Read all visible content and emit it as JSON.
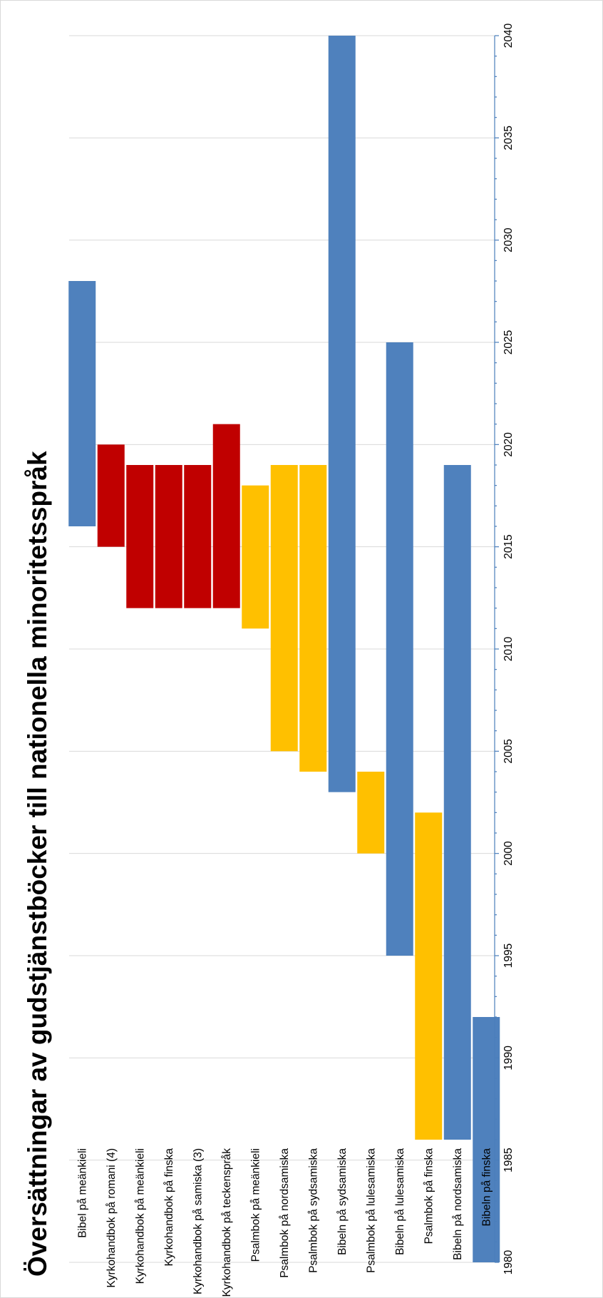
{
  "chart_data": {
    "type": "bar",
    "orientation": "floating-range",
    "title": "Översättningar av gudstjänstböcker till nationella minoritetsspråk",
    "xlabel": "",
    "ylabel": "",
    "axis_range": [
      1980,
      2040
    ],
    "ticks": [
      1980,
      1985,
      1990,
      1995,
      2000,
      2005,
      2010,
      2015,
      2020,
      2025,
      2030,
      2035,
      2040
    ],
    "grid": true,
    "legend": "none",
    "colors": {
      "blue": "#4f81bd",
      "red": "#c00000",
      "yellow": "#ffc000"
    },
    "bars": [
      {
        "category": "Bibel på meänkieli",
        "start": 2016,
        "end": 2028,
        "color": "blue"
      },
      {
        "category": "Kyrkohandbok på romani (4)",
        "start": 2015,
        "end": 2020,
        "color": "red"
      },
      {
        "category": "Kyrkohandbok på meänkieli",
        "start": 2012,
        "end": 2019,
        "color": "red"
      },
      {
        "category": "Kyrkohandbok på finska",
        "start": 2012,
        "end": 2019,
        "color": "red"
      },
      {
        "category": "Kyrkohandbok på samiska (3)",
        "start": 2012,
        "end": 2019,
        "color": "red"
      },
      {
        "category": "Kyrkohandbok på teckenspråk",
        "start": 2012,
        "end": 2021,
        "color": "red"
      },
      {
        "category": "Psalmbok på meänkieli",
        "start": 2011,
        "end": 2018,
        "color": "yellow"
      },
      {
        "category": "Psalmbok på nordsamiska",
        "start": 2005,
        "end": 2019,
        "color": "yellow"
      },
      {
        "category": "Psalmbok på sydsamiska",
        "start": 2004,
        "end": 2019,
        "color": "yellow"
      },
      {
        "category": "Bibeln på sydsamiska",
        "start": 2003,
        "end": 2040,
        "color": "blue"
      },
      {
        "category": "Psalmbok på lulesamiska",
        "start": 2000,
        "end": 2004,
        "color": "yellow"
      },
      {
        "category": "Bibeln på lulesamiska",
        "start": 1995,
        "end": 2025,
        "color": "blue"
      },
      {
        "category": "Psalmbok på finska",
        "start": 1986,
        "end": 2002,
        "color": "yellow"
      },
      {
        "category": "Bibeln på nordsamiska",
        "start": 1986,
        "end": 2019,
        "color": "blue"
      },
      {
        "category": "Bibeln på finska",
        "start": 1980,
        "end": 1992,
        "color": "blue"
      }
    ]
  }
}
